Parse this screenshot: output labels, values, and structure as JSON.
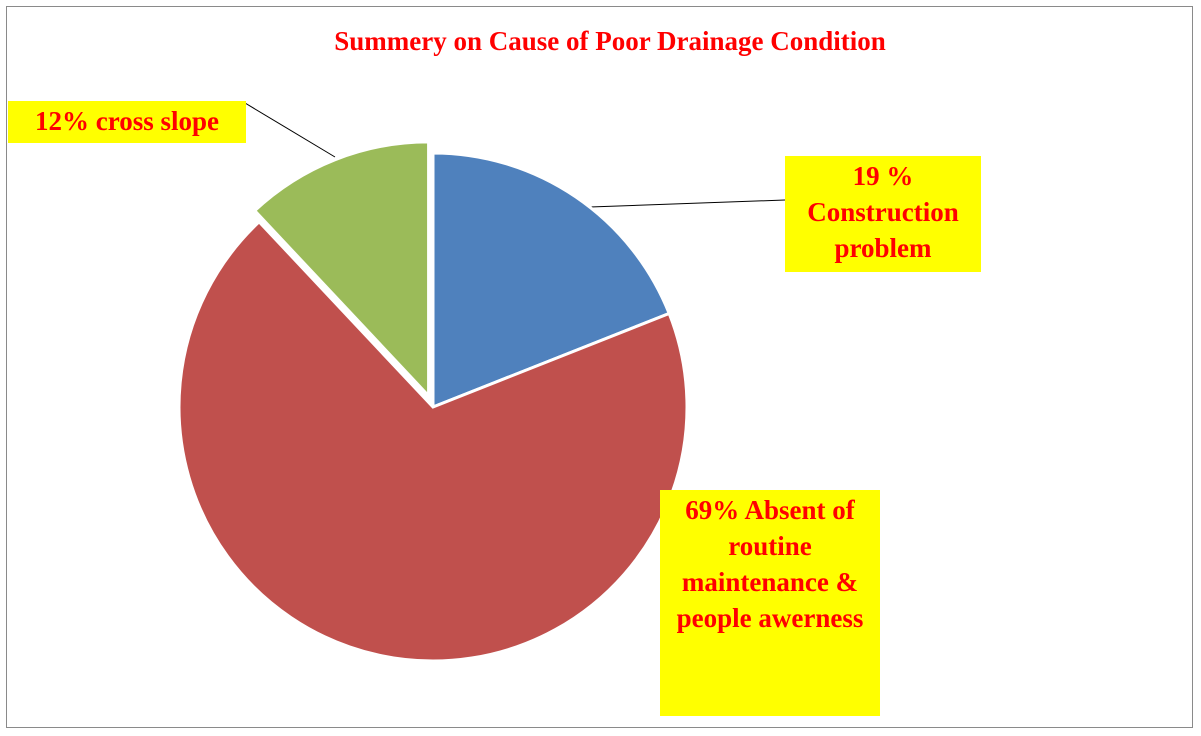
{
  "chart_data": {
    "type": "pie",
    "title": "Summery on Cause of  Poor Drainage Condition",
    "values": [
      19,
      69,
      12
    ],
    "value_labels": [
      "19 % Construction problem",
      "69% Absent of routine maintenance & people awerness",
      "12% cross slope"
    ],
    "colors": [
      "#4f81bd",
      "#c0504d",
      "#9bbb59"
    ]
  }
}
